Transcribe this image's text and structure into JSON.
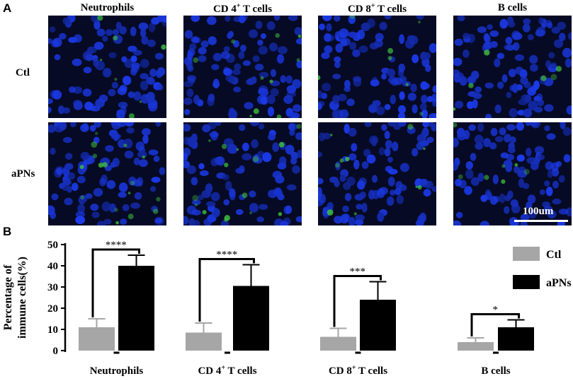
{
  "panel_a": {
    "letter": "A",
    "column_headers": [
      "Neutrophils",
      "CD 4",
      "T cells",
      "CD 8",
      "T cells",
      "B cells"
    ],
    "columns": [
      {
        "name": "Neutrophils",
        "sup": ""
      },
      {
        "name": "CD 4",
        "sup": "+",
        "suffix": " T cells"
      },
      {
        "name": "CD 8",
        "sup": "+",
        "suffix": " T cells"
      },
      {
        "name": "B cells",
        "sup": ""
      }
    ],
    "rows": [
      "Ctl",
      "aPNs"
    ],
    "scale_bar": "100um",
    "colors": {
      "nuclei": "#1f3fd6",
      "marker": "#3fbf3f",
      "background": "#060a24"
    }
  },
  "panel_b": {
    "letter": "B"
  },
  "chart_data": {
    "type": "bar",
    "categories": [
      "Neutrophils",
      "CD 4+ T cells",
      "CD 8+ T cells",
      "B cells"
    ],
    "category_labels": [
      {
        "main": "Neutrophils",
        "sup": "",
        "rest": ""
      },
      {
        "main": "CD 4",
        "sup": "+",
        "rest": " T cells"
      },
      {
        "main": "CD 8",
        "sup": "+",
        "rest": " T cells"
      },
      {
        "main": "B cells",
        "sup": "",
        "rest": ""
      }
    ],
    "series": [
      {
        "name": "Ctl",
        "color": "#a6a6a6",
        "values": [
          11,
          8.5,
          6.5,
          4
        ],
        "errors": [
          4,
          4.5,
          4,
          2
        ]
      },
      {
        "name": "aPNs",
        "color": "#000000",
        "values": [
          40,
          30.5,
          24,
          11
        ],
        "errors": [
          5,
          10,
          8.5,
          3.5
        ]
      }
    ],
    "significance": [
      "****",
      "****",
      "***",
      "*"
    ],
    "ylabel_lines": [
      "Percentage of",
      "immune cells(%)"
    ],
    "yticks": [
      0,
      10,
      20,
      30,
      40,
      50
    ],
    "ylim": [
      0,
      50
    ],
    "legend_position": "top-right"
  }
}
